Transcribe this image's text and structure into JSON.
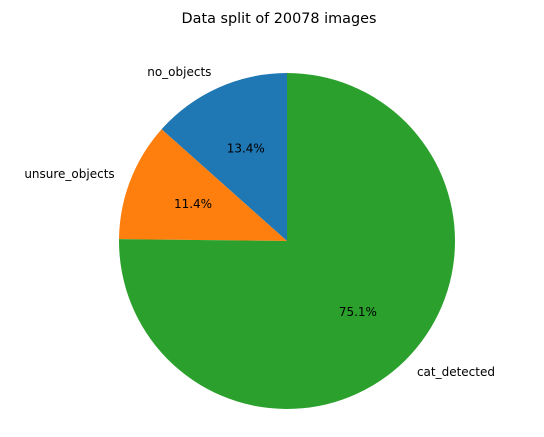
{
  "chart_data": {
    "type": "pie",
    "title": "Data split of 20078 images",
    "slices": [
      {
        "label": "no_objects",
        "value": 13.4,
        "pct_label": "13.4%",
        "color": "#1f77b4"
      },
      {
        "label": "unsure_objects",
        "value": 11.4,
        "pct_label": "11.4%",
        "color": "#ff7f0e"
      },
      {
        "label": "cat_detected",
        "value": 75.1,
        "pct_label": "75.1%",
        "color": "#2ca02c"
      }
    ],
    "start_angle": 90,
    "direction": "counterclockwise",
    "legend": "none"
  }
}
